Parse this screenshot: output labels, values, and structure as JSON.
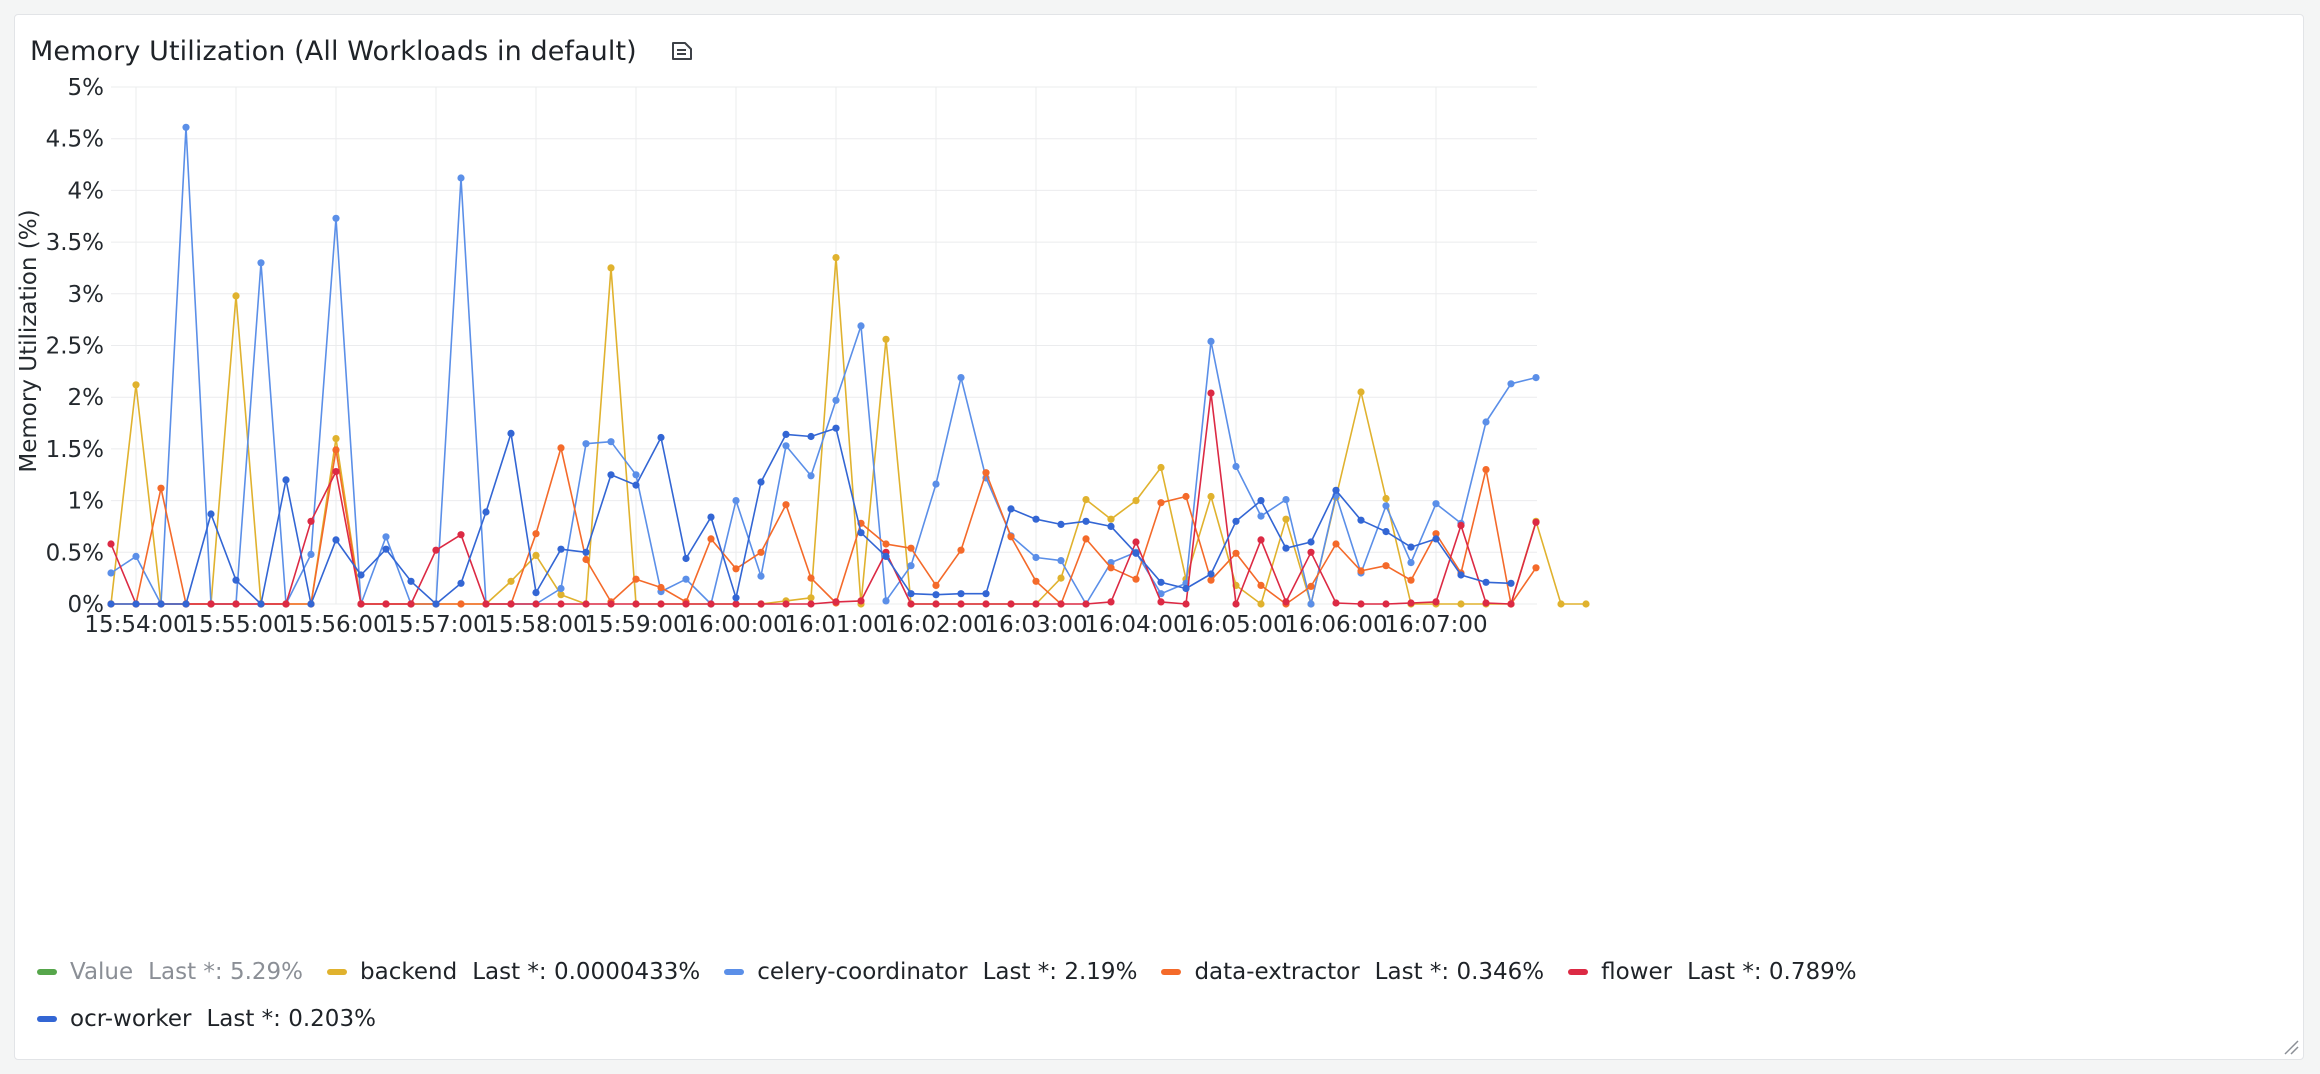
{
  "panel": {
    "title": "Memory Utilization (All Workloads in default)",
    "description_icon": "description-icon",
    "resize_icon": "resize-handle-icon"
  },
  "chart_data": {
    "type": "line",
    "title": "Memory Utilization (All Workloads in default)",
    "ylabel": "Memory Utilization (%)",
    "xlabel": "",
    "ylim": [
      0,
      5
    ],
    "y_ticks": [
      "0%",
      "0.5%",
      "1%",
      "1.5%",
      "2%",
      "2.5%",
      "3%",
      "3.5%",
      "4%",
      "4.5%",
      "5%"
    ],
    "x_ticks": [
      "15:54:00",
      "15:55:00",
      "15:56:00",
      "15:57:00",
      "15:58:00",
      "15:59:00",
      "16:00:00",
      "16:01:00",
      "16:02:00",
      "16:03:00",
      "16:04:00",
      "16:05:00",
      "16:06:00",
      "16:07:00"
    ],
    "x_interval_seconds": 15,
    "x_start": "15:53:45",
    "grid": true,
    "legend_placement": "bottom",
    "series": [
      {
        "name": "Value",
        "color": "#56a64b",
        "visible": false,
        "last_label": "Last *: 5.29%",
        "values": []
      },
      {
        "name": "backend",
        "color": "#e0b22e",
        "last_label": "Last *: 0.0000433%",
        "values": [
          0,
          2.12,
          0,
          0,
          0,
          2.98,
          0,
          0,
          0,
          1.6,
          0,
          0,
          0,
          0,
          0,
          0,
          0.22,
          0.47,
          0.09,
          0,
          3.25,
          0,
          0,
          0,
          0,
          0,
          0,
          0.03,
          0.06,
          3.35,
          0,
          2.56,
          0,
          0,
          0,
          0,
          0,
          0,
          0.25,
          1.01,
          0.82,
          1.0,
          1.32,
          0.24,
          1.04,
          0.18,
          0,
          0.82,
          0,
          1.03,
          2.05,
          1.02,
          0,
          0,
          0,
          0,
          0,
          0.8,
          0,
          0
        ]
      },
      {
        "name": "celery-coordinator",
        "color": "#5b8fe8",
        "last_label": "Last *: 2.19%",
        "values": [
          0.3,
          0.46,
          0,
          4.61,
          0,
          0,
          3.3,
          0,
          0.48,
          3.73,
          0,
          0.65,
          0,
          0,
          4.12,
          0,
          0,
          0,
          0.15,
          1.55,
          1.57,
          1.25,
          0.12,
          0.24,
          0,
          1.0,
          0.27,
          1.53,
          1.24,
          1.97,
          2.69,
          0.03,
          0.37,
          1.16,
          2.19,
          1.22,
          0.66,
          0.45,
          0.42,
          0,
          0.4,
          0.5,
          0.1,
          0.2,
          2.54,
          1.33,
          0.85,
          1.01,
          0,
          1.05,
          0.3,
          0.95,
          0.4,
          0.97,
          0.78,
          1.76,
          2.13,
          2.19
        ]
      },
      {
        "name": "data-extractor",
        "color": "#f46a2a",
        "last_label": "Last *: 0.346%",
        "values": [
          0,
          0,
          1.12,
          0,
          0,
          0,
          0,
          0,
          0,
          1.49,
          0,
          0,
          0,
          0,
          0,
          0,
          0,
          0.68,
          1.51,
          0.43,
          0.02,
          0.24,
          0.16,
          0.02,
          0.63,
          0.34,
          0.5,
          0.96,
          0.25,
          0.01,
          0.78,
          0.58,
          0.54,
          0.18,
          0.52,
          1.27,
          0.65,
          0.22,
          0,
          0.63,
          0.35,
          0.24,
          0.98,
          1.04,
          0.23,
          0.49,
          0.18,
          0,
          0.17,
          0.58,
          0.32,
          0.37,
          0.23,
          0.68,
          0.3,
          1.3,
          0,
          0.35
        ]
      },
      {
        "name": "flower",
        "color": "#dc2a44",
        "last_label": "Last *: 0.789%",
        "values": [
          0.58,
          0,
          0,
          0,
          0,
          0,
          0,
          0,
          0.8,
          1.28,
          0,
          0,
          0,
          0.52,
          0.67,
          0,
          0,
          0,
          0,
          0,
          0,
          0,
          0,
          0,
          0,
          0,
          0,
          0,
          0,
          0.02,
          0.03,
          0.5,
          0,
          0,
          0,
          0,
          0,
          0,
          0,
          0,
          0.02,
          0.6,
          0.02,
          0,
          2.04,
          0,
          0.62,
          0.02,
          0.5,
          0.01,
          0,
          0,
          0.01,
          0.02,
          0.76,
          0.01,
          0,
          0.79
        ]
      },
      {
        "name": "ocr-worker",
        "color": "#3366d4",
        "last_label": "Last *: 0.203%",
        "values": [
          0,
          0,
          0,
          0,
          0.87,
          0.23,
          0,
          1.2,
          0,
          0.62,
          0.28,
          0.53,
          0.22,
          0,
          0.2,
          0.89,
          1.65,
          0.11,
          0.53,
          0.5,
          1.25,
          1.15,
          1.61,
          0.44,
          0.84,
          0.06,
          1.18,
          1.64,
          1.62,
          1.7,
          0.69,
          0.46,
          0.1,
          0.09,
          0.1,
          0.1,
          0.92,
          0.82,
          0.77,
          0.8,
          0.75,
          0.49,
          0.21,
          0.15,
          0.29,
          0.8,
          1.0,
          0.54,
          0.6,
          1.1,
          0.81,
          0.7,
          0.55,
          0.63,
          0.28,
          0.21,
          0.2
        ]
      }
    ]
  }
}
